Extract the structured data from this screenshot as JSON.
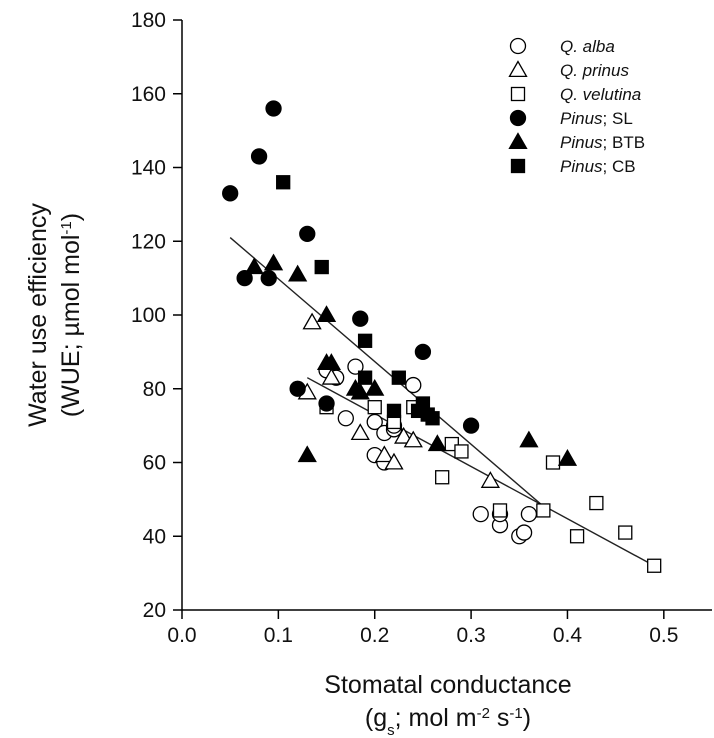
{
  "chart_data": {
    "type": "scatter",
    "xlabel": {
      "line1": "Stomatal conductance",
      "line2_parts": [
        "(g",
        "s",
        "; mol m",
        "-2",
        " s",
        "-1",
        ")"
      ]
    },
    "ylabel": {
      "line1": "Water use efficiency",
      "line2_parts": [
        "(WUE; µmol mol",
        "-1",
        ")"
      ]
    },
    "xlim": [
      0.0,
      0.55
    ],
    "ylim": [
      20,
      180
    ],
    "xticks": [
      "0.0",
      "0.1",
      "0.2",
      "0.3",
      "0.4",
      "0.5"
    ],
    "xtick_values": [
      0.0,
      0.1,
      0.2,
      0.3,
      0.4,
      0.5
    ],
    "yticks": [
      "20",
      "40",
      "60",
      "80",
      "100",
      "120",
      "140",
      "160",
      "180"
    ],
    "ytick_values": [
      20,
      40,
      60,
      80,
      100,
      120,
      140,
      160,
      180
    ],
    "grid": false,
    "legend_position": "top-right",
    "series": [
      {
        "name": "Q. alba",
        "italic_part": "Q. alba",
        "suffix": "",
        "marker": "circle",
        "filled": false,
        "points": [
          [
            0.15,
            85
          ],
          [
            0.16,
            83
          ],
          [
            0.17,
            72
          ],
          [
            0.18,
            86
          ],
          [
            0.2,
            71
          ],
          [
            0.21,
            68
          ],
          [
            0.22,
            69
          ],
          [
            0.2,
            62
          ],
          [
            0.21,
            60
          ],
          [
            0.24,
            81
          ],
          [
            0.22,
            70
          ],
          [
            0.31,
            46
          ],
          [
            0.33,
            43
          ],
          [
            0.33,
            46
          ],
          [
            0.35,
            40
          ],
          [
            0.355,
            41
          ],
          [
            0.36,
            46
          ]
        ]
      },
      {
        "name": "Q. prinus",
        "italic_part": "Q. prinus",
        "suffix": "",
        "marker": "triangle",
        "filled": false,
        "points": [
          [
            0.135,
            98
          ],
          [
            0.13,
            79
          ],
          [
            0.155,
            83
          ],
          [
            0.185,
            68
          ],
          [
            0.21,
            62
          ],
          [
            0.22,
            60
          ],
          [
            0.23,
            67
          ],
          [
            0.24,
            66
          ],
          [
            0.32,
            55
          ]
        ]
      },
      {
        "name": "Q. velutina",
        "italic_part": "Q. velutina",
        "suffix": "",
        "marker": "square",
        "filled": false,
        "points": [
          [
            0.15,
            75
          ],
          [
            0.2,
            75
          ],
          [
            0.22,
            71
          ],
          [
            0.24,
            75
          ],
          [
            0.27,
            56
          ],
          [
            0.28,
            65
          ],
          [
            0.29,
            63
          ],
          [
            0.33,
            47
          ],
          [
            0.375,
            47
          ],
          [
            0.385,
            60
          ],
          [
            0.41,
            40
          ],
          [
            0.43,
            49
          ],
          [
            0.46,
            41
          ],
          [
            0.49,
            32
          ]
        ]
      },
      {
        "name": "Pinus; SL",
        "italic_part": "Pinus",
        "suffix": "; SL",
        "marker": "circle",
        "filled": true,
        "points": [
          [
            0.05,
            133
          ],
          [
            0.065,
            110
          ],
          [
            0.08,
            143
          ],
          [
            0.09,
            110
          ],
          [
            0.095,
            156
          ],
          [
            0.13,
            122
          ],
          [
            0.12,
            80
          ],
          [
            0.15,
            76
          ],
          [
            0.185,
            99
          ],
          [
            0.25,
            90
          ],
          [
            0.3,
            70
          ]
        ]
      },
      {
        "name": "Pinus; BTB",
        "italic_part": "Pinus",
        "suffix": "; BTB",
        "marker": "triangle",
        "filled": true,
        "points": [
          [
            0.075,
            113
          ],
          [
            0.095,
            114
          ],
          [
            0.12,
            111
          ],
          [
            0.13,
            62
          ],
          [
            0.15,
            100
          ],
          [
            0.15,
            87
          ],
          [
            0.155,
            87
          ],
          [
            0.18,
            80
          ],
          [
            0.185,
            79
          ],
          [
            0.2,
            80
          ],
          [
            0.265,
            65
          ],
          [
            0.36,
            66
          ],
          [
            0.4,
            61
          ]
        ]
      },
      {
        "name": "Pinus; CB",
        "italic_part": "Pinus",
        "suffix": "; CB",
        "marker": "square",
        "filled": true,
        "points": [
          [
            0.105,
            136
          ],
          [
            0.145,
            113
          ],
          [
            0.19,
            93
          ],
          [
            0.19,
            83
          ],
          [
            0.22,
            74
          ],
          [
            0.225,
            83
          ],
          [
            0.245,
            74
          ],
          [
            0.25,
            76
          ],
          [
            0.255,
            73
          ],
          [
            0.26,
            72
          ]
        ]
      }
    ],
    "fit_lines": [
      {
        "x": [
          0.05,
          0.38
        ],
        "y": [
          121,
          47
        ]
      },
      {
        "x": [
          0.13,
          0.49
        ],
        "y": [
          83,
          32
        ]
      }
    ]
  }
}
